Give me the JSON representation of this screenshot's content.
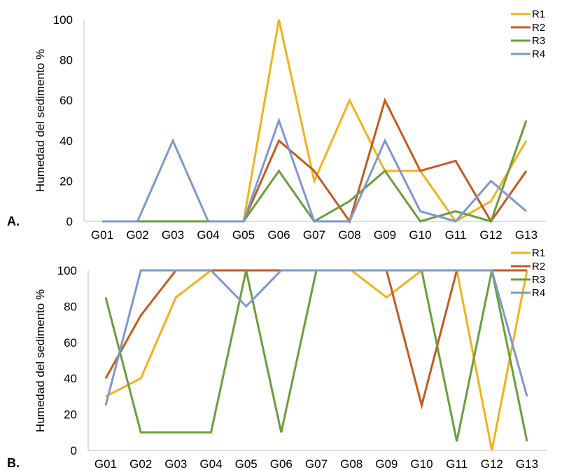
{
  "chart_data": [
    {
      "type": "line",
      "panel_label": "A.",
      "ylabel": "Humedad  del sedimento %",
      "xlabel": "",
      "categories": [
        "G01",
        "G02",
        "G03",
        "G04",
        "G05",
        "G06",
        "G07",
        "G08",
        "G09",
        "G10",
        "G11",
        "G12",
        "G13"
      ],
      "ylim": [
        0,
        100
      ],
      "yticks": [
        "0",
        "20",
        "40",
        "60",
        "80",
        "100"
      ],
      "grid": false,
      "legend_position": "top-right",
      "series": [
        {
          "name": "R1",
          "color": "#F2B21D",
          "values": [
            0,
            0,
            0,
            0,
            0,
            100,
            20,
            60,
            25,
            25,
            0,
            10,
            40
          ]
        },
        {
          "name": "R2",
          "color": "#C55A1E",
          "values": [
            0,
            0,
            0,
            0,
            0,
            40,
            25,
            0,
            60,
            25,
            30,
            0,
            25
          ]
        },
        {
          "name": "R3",
          "color": "#6A9E3C",
          "values": [
            0,
            0,
            0,
            0,
            0,
            25,
            0,
            10,
            25,
            0,
            5,
            0,
            50
          ]
        },
        {
          "name": "R4",
          "color": "#7F97CF",
          "values": [
            0,
            0,
            40,
            0,
            0,
            50,
            0,
            0,
            40,
            5,
            0,
            20,
            5
          ]
        }
      ]
    },
    {
      "type": "line",
      "panel_label": "B.",
      "ylabel": "Humedad  del sedimento %",
      "xlabel": "",
      "categories": [
        "G01",
        "G02",
        "G03",
        "G04",
        "G05",
        "G06",
        "G07",
        "G08",
        "G09",
        "G10",
        "G11",
        "G12",
        "G13"
      ],
      "ylim": [
        0,
        100
      ],
      "yticks": [
        "0",
        "20",
        "40",
        "60",
        "80",
        "100"
      ],
      "grid": false,
      "legend_position": "top-right",
      "series": [
        {
          "name": "R1",
          "color": "#F2B21D",
          "values": [
            30,
            40,
            85,
            100,
            100,
            100,
            100,
            100,
            85,
            100,
            100,
            0,
            100
          ]
        },
        {
          "name": "R2",
          "color": "#C55A1E",
          "values": [
            40,
            75,
            100,
            100,
            100,
            100,
            100,
            100,
            100,
            25,
            100,
            100,
            100
          ]
        },
        {
          "name": "R3",
          "color": "#6A9E3C",
          "values": [
            85,
            10,
            10,
            10,
            100,
            10,
            100,
            100,
            100,
            100,
            5,
            100,
            5
          ]
        },
        {
          "name": "R4",
          "color": "#7F97CF",
          "values": [
            25,
            100,
            100,
            100,
            80,
            100,
            100,
            100,
            100,
            100,
            100,
            100,
            30
          ]
        }
      ]
    }
  ]
}
